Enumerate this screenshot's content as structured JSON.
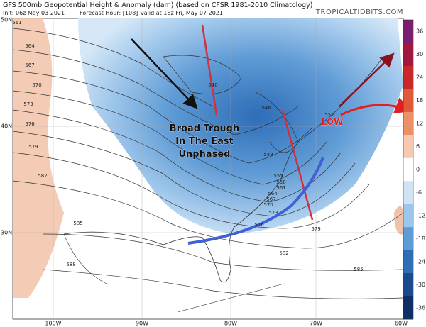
{
  "header": {
    "title": "GFS 500mb Geopotential Height & Anomaly (dam) (based on CFSR 1981-2010 Climatology)",
    "init": "Init: 06z May 03 2021",
    "forecast_hour": "Forecast Hour: [108]",
    "valid": "valid at 18z Fri, May 07 2021",
    "source": "TROPICALTIDBITS.COM"
  },
  "latitudes": [
    "50N",
    "40N",
    "30N"
  ],
  "longitudes": [
    "100W",
    "90W",
    "80W",
    "70W",
    "60W"
  ],
  "colorbar": {
    "labels": [
      36,
      30,
      24,
      18,
      12,
      6,
      0,
      -6,
      -12,
      -18,
      -24,
      -30,
      -36
    ]
  },
  "contour_labels": [
    561,
    564,
    567,
    570,
    573,
    576,
    579,
    582,
    585,
    588,
    540,
    546,
    549,
    552,
    555,
    558,
    561,
    564,
    567,
    570,
    573,
    576,
    579,
    582,
    585
  ],
  "annotations": {
    "trough": [
      "Broad Trough",
      "In The East",
      "Unphased"
    ],
    "low": "LOW"
  }
}
